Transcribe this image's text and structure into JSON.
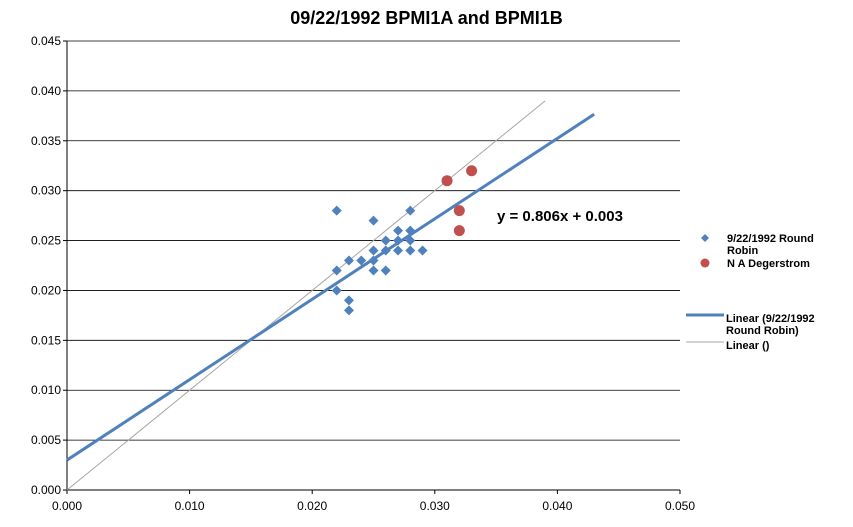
{
  "chart_data": {
    "type": "scatter",
    "title": "09/22/1992 BPMI1A and BPMI1B",
    "xlabel": "",
    "ylabel": "",
    "xlim": [
      0,
      0.05
    ],
    "ylim": [
      0,
      0.045
    ],
    "x_ticks": [
      "0.000",
      "0.010",
      "0.020",
      "0.030",
      "0.040",
      "0.050"
    ],
    "y_ticks": [
      "0.000",
      "0.005",
      "0.010",
      "0.015",
      "0.020",
      "0.025",
      "0.030",
      "0.035",
      "0.040",
      "0.045"
    ],
    "grid": "horizontal",
    "legend_position": "right",
    "series": [
      {
        "name": "9/22/1992 Round Robin",
        "marker": "diamond",
        "color": "#4f81bd",
        "points": [
          [
            0.022,
            0.028
          ],
          [
            0.025,
            0.027
          ],
          [
            0.028,
            0.028
          ],
          [
            0.027,
            0.026
          ],
          [
            0.028,
            0.026
          ],
          [
            0.026,
            0.025
          ],
          [
            0.027,
            0.025
          ],
          [
            0.028,
            0.025
          ],
          [
            0.025,
            0.024
          ],
          [
            0.026,
            0.024
          ],
          [
            0.027,
            0.024
          ],
          [
            0.028,
            0.024
          ],
          [
            0.029,
            0.024
          ],
          [
            0.023,
            0.023
          ],
          [
            0.024,
            0.023
          ],
          [
            0.025,
            0.023
          ],
          [
            0.022,
            0.022
          ],
          [
            0.025,
            0.022
          ],
          [
            0.026,
            0.022
          ],
          [
            0.022,
            0.02
          ],
          [
            0.023,
            0.019
          ],
          [
            0.023,
            0.018
          ]
        ]
      },
      {
        "name": "N A Degerstrom",
        "marker": "circle",
        "color": "#c0504d",
        "points": [
          [
            0.031,
            0.031
          ],
          [
            0.033,
            0.032
          ],
          [
            0.032,
            0.028
          ],
          [
            0.032,
            0.026
          ]
        ]
      }
    ],
    "trendlines": [
      {
        "name": "Linear (9/22/1992 Round Robin)",
        "color": "#4f81bd",
        "slope": 0.806,
        "intercept": 0.003,
        "x_range": [
          0,
          0.043
        ]
      },
      {
        "name": "Linear ()",
        "color": "#a6a6a6",
        "slope": 1,
        "intercept": 0,
        "x_range": [
          0,
          0.039
        ]
      }
    ],
    "annotations": [
      {
        "text": "y = 0.806x + 0.003"
      }
    ],
    "legend": [
      {
        "label_lines": [
          "9/22/1992 Round",
          "Robin"
        ],
        "marker": "diamond",
        "color": "#4f81bd"
      },
      {
        "label_lines": [
          "N A Degerstrom"
        ],
        "marker": "circle",
        "color": "#c0504d"
      },
      {
        "label_lines": [
          "Linear (9/22/1992",
          "Round Robin)"
        ],
        "marker": "line",
        "color": "#4f81bd"
      },
      {
        "label_lines": [
          "Linear ()"
        ],
        "marker": "line",
        "color": "#a6a6a6"
      }
    ]
  }
}
